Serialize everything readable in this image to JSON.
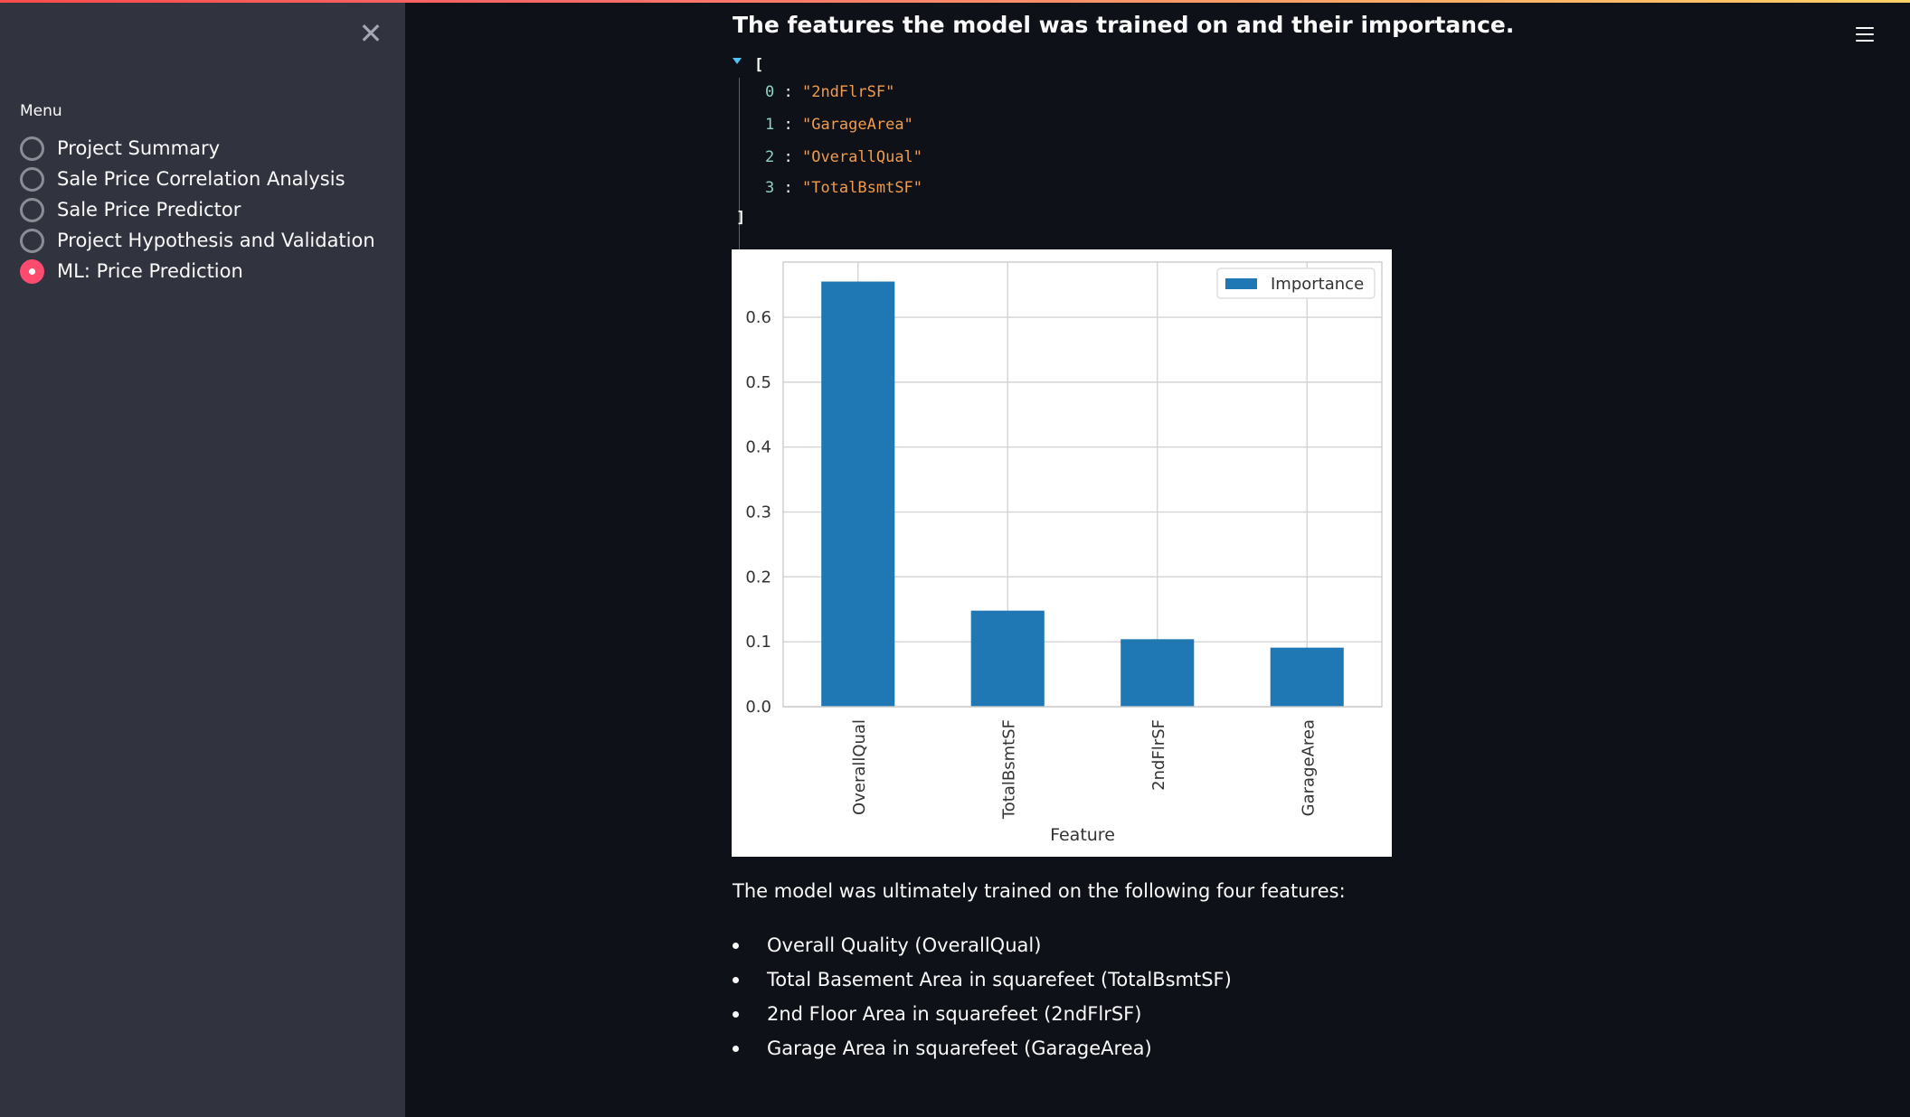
{
  "sidebar": {
    "close_icon": "close-icon",
    "menu_label": "Menu",
    "items": [
      {
        "label": "Project Summary",
        "selected": false
      },
      {
        "label": "Sale Price Correlation Analysis",
        "selected": false
      },
      {
        "label": "Sale Price Predictor",
        "selected": false
      },
      {
        "label": "Project Hypothesis and Validation",
        "selected": false
      },
      {
        "label": "ML: Price Prediction",
        "selected": true
      }
    ],
    "accent_color": "#ff4b6e"
  },
  "header": {
    "menu_icon": "hamburger-menu-icon"
  },
  "main": {
    "heading": "The features the model was trained on and their importance.",
    "json_open": "[",
    "json_close": "]",
    "json_items": [
      {
        "index": "0",
        "value": "\"2ndFlrSF\""
      },
      {
        "index": "1",
        "value": "\"GarageArea\""
      },
      {
        "index": "2",
        "value": "\"OverallQual\""
      },
      {
        "index": "3",
        "value": "\"TotalBsmtSF\""
      }
    ],
    "paragraph": "The model was ultimately trained on the following four features:",
    "bullets": [
      "Overall Quality (OverallQual)",
      "Total Basement Area in squarefeet (TotalBsmtSF)",
      "2nd Floor Area in squarefeet (2ndFlrSF)",
      "Garage Area in squarefeet (GarageArea)"
    ]
  },
  "chart_data": {
    "type": "bar",
    "title": "",
    "xlabel": "Feature",
    "ylabel": "",
    "categories": [
      "OverallQual",
      "TotalBsmtSF",
      "2ndFlrSF",
      "GarageArea"
    ],
    "series": [
      {
        "name": "Importance",
        "values": [
          0.655,
          0.148,
          0.104,
          0.091
        ],
        "color": "#1f77b4"
      }
    ],
    "ylim": [
      0,
      0.685
    ],
    "yticks": [
      "0.0",
      "0.1",
      "0.2",
      "0.3",
      "0.4",
      "0.5",
      "0.6"
    ],
    "grid": true,
    "legend": "top-right"
  }
}
